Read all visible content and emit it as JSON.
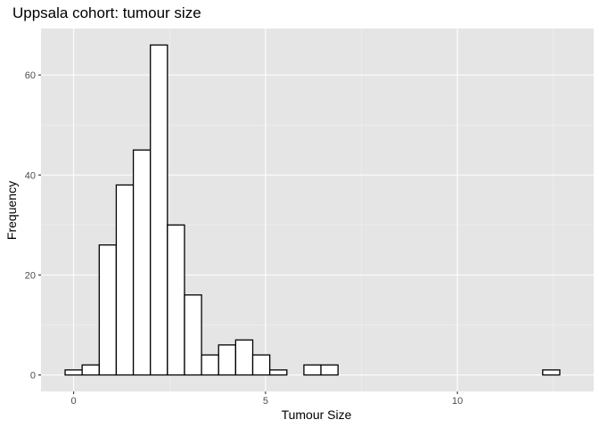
{
  "chart_data": {
    "type": "bar",
    "title": "Uppsala cohort: tumour size",
    "xlabel": "Tumour Size",
    "ylabel": "Frequency",
    "xlim": [
      -0.85,
      13.55
    ],
    "ylim": [
      -3.3,
      69.3
    ],
    "x_ticks": [
      0,
      5,
      10
    ],
    "y_ticks": [
      0,
      20,
      40,
      60
    ],
    "grid": true,
    "bin_width": 0.4444,
    "bins": [
      {
        "left": -0.222,
        "right": 0.222,
        "count": 1
      },
      {
        "left": 0.222,
        "right": 0.667,
        "count": 2
      },
      {
        "left": 0.667,
        "right": 1.111,
        "count": 26
      },
      {
        "left": 1.111,
        "right": 1.556,
        "count": 38
      },
      {
        "left": 1.556,
        "right": 2.0,
        "count": 45
      },
      {
        "left": 2.0,
        "right": 2.444,
        "count": 66
      },
      {
        "left": 2.444,
        "right": 2.889,
        "count": 30
      },
      {
        "left": 2.889,
        "right": 3.333,
        "count": 16
      },
      {
        "left": 3.333,
        "right": 3.778,
        "count": 4
      },
      {
        "left": 3.778,
        "right": 4.222,
        "count": 6
      },
      {
        "left": 4.222,
        "right": 4.667,
        "count": 7
      },
      {
        "left": 4.667,
        "right": 5.111,
        "count": 4
      },
      {
        "left": 5.111,
        "right": 5.556,
        "count": 1
      },
      {
        "left": 5.556,
        "right": 6.0,
        "count": 0
      },
      {
        "left": 6.0,
        "right": 6.444,
        "count": 2
      },
      {
        "left": 6.444,
        "right": 6.889,
        "count": 2
      },
      {
        "left": 6.889,
        "right": 12.222,
        "count": 0
      },
      {
        "left": 12.222,
        "right": 12.667,
        "count": 1
      }
    ]
  }
}
